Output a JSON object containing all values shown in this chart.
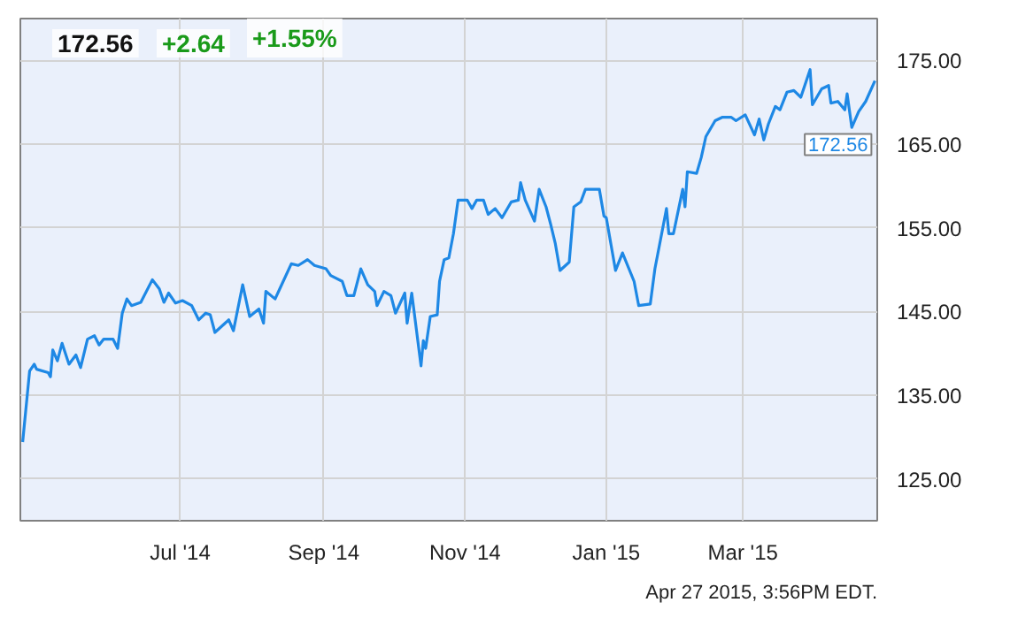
{
  "chart_data": {
    "type": "line",
    "x": [
      "2014-04-24",
      "2014-04-27",
      "2014-04-29",
      "2014-04-30",
      "2014-05-05",
      "2014-05-06",
      "2014-05-07",
      "2014-05-09",
      "2014-05-11",
      "2014-05-14",
      "2014-05-17",
      "2014-05-19",
      "2014-05-22",
      "2014-05-25",
      "2014-05-27",
      "2014-05-29",
      "2014-06-02",
      "2014-06-04",
      "2014-06-06",
      "2014-06-08",
      "2014-06-10",
      "2014-06-14",
      "2014-06-19",
      "2014-06-22",
      "2014-06-24",
      "2014-06-26",
      "2014-06-29",
      "2014-07-02",
      "2014-07-06",
      "2014-07-09",
      "2014-07-12",
      "2014-07-14",
      "2014-07-16",
      "2014-07-22",
      "2014-07-24",
      "2014-07-28",
      "2014-07-31",
      "2014-08-04",
      "2014-08-06",
      "2014-08-07",
      "2014-08-11",
      "2014-08-13",
      "2014-08-18",
      "2014-08-21",
      "2014-08-25",
      "2014-08-28",
      "2014-09-02",
      "2014-09-04",
      "2014-09-09",
      "2014-09-11",
      "2014-09-14",
      "2014-09-17",
      "2014-09-20",
      "2014-09-23",
      "2014-09-24",
      "2014-09-27",
      "2014-09-30",
      "2014-10-02",
      "2014-10-06",
      "2014-10-07",
      "2014-10-09",
      "2014-10-13",
      "2014-10-14",
      "2014-10-15",
      "2014-10-17",
      "2014-10-20",
      "2014-10-21",
      "2014-10-23",
      "2014-10-25",
      "2014-10-27",
      "2014-10-29",
      "2014-11-02",
      "2014-11-04",
      "2014-11-06",
      "2014-11-09",
      "2014-11-11",
      "2014-11-14",
      "2014-11-17",
      "2014-11-21",
      "2014-11-24",
      "2014-11-25",
      "2014-11-27",
      "2014-12-01",
      "2014-12-03",
      "2014-12-06",
      "2014-12-08",
      "2014-12-10",
      "2014-12-12",
      "2014-12-16",
      "2014-12-18",
      "2014-12-21",
      "2014-12-23",
      "2014-12-29",
      "2014-12-31",
      "2015-01-01",
      "2015-01-05",
      "2015-01-08",
      "2015-01-13",
      "2015-01-15",
      "2015-01-20",
      "2015-01-22",
      "2015-01-27",
      "2015-01-28",
      "2015-01-30",
      "2015-02-03",
      "2015-02-04",
      "2015-02-05",
      "2015-02-09",
      "2015-02-11",
      "2015-02-13",
      "2015-02-17",
      "2015-02-20",
      "2015-02-24",
      "2015-02-26",
      "2015-03-02",
      "2015-03-06",
      "2015-03-08",
      "2015-03-10",
      "2015-03-12",
      "2015-03-15",
      "2015-03-17",
      "2015-03-20",
      "2015-03-23",
      "2015-03-26",
      "2015-03-30",
      "2015-03-31",
      "2015-04-04",
      "2015-04-07",
      "2015-04-08",
      "2015-04-11",
      "2015-04-14",
      "2015-04-15",
      "2015-04-17",
      "2015-04-20",
      "2015-04-23",
      "2015-04-27"
    ],
    "series": [
      {
        "color": "#1e88e5",
        "values": [
          129.4,
          137.9,
          138.7,
          138.1,
          137.7,
          137.2,
          140.4,
          139.1,
          141.2,
          138.7,
          139.8,
          138.3,
          141.7,
          142.1,
          141.0,
          141.7,
          141.7,
          140.6,
          144.8,
          146.5,
          145.7,
          146.1,
          148.8,
          147.7,
          146.1,
          147.2,
          146.0,
          146.3,
          145.7,
          144.0,
          144.8,
          144.6,
          142.5,
          144.0,
          142.7,
          148.2,
          144.4,
          145.3,
          143.6,
          147.4,
          146.5,
          147.7,
          150.7,
          150.5,
          151.2,
          150.5,
          150.1,
          149.3,
          148.6,
          146.9,
          146.9,
          150.1,
          148.2,
          147.4,
          145.7,
          147.4,
          146.9,
          144.8,
          147.2,
          143.6,
          147.2,
          138.5,
          141.5,
          140.6,
          144.4,
          144.6,
          148.6,
          151.2,
          151.4,
          154.3,
          158.3,
          158.3,
          157.3,
          158.3,
          158.3,
          156.6,
          157.3,
          156.2,
          158.1,
          158.3,
          160.4,
          158.3,
          155.8,
          159.6,
          157.5,
          155.4,
          153.1,
          149.9,
          150.9,
          157.5,
          158.1,
          159.6,
          159.6,
          156.4,
          156.2,
          149.9,
          152.0,
          148.6,
          145.7,
          145.9,
          150.1,
          157.3,
          154.3,
          154.3,
          159.6,
          157.5,
          161.7,
          161.5,
          163.4,
          165.9,
          167.8,
          168.2,
          168.2,
          167.8,
          168.5,
          166.1,
          168.0,
          165.5,
          167.4,
          169.5,
          169.1,
          171.2,
          171.4,
          170.6,
          173.9,
          169.7,
          171.6,
          172.0,
          169.9,
          170.1,
          169.1,
          171.0,
          167.0,
          168.9,
          170.1,
          172.56
        ]
      }
    ],
    "xlim": [
      "2014-04-23",
      "2015-04-28"
    ],
    "xticks": [
      {
        "value": "2014-07-01",
        "label": "Jul '14"
      },
      {
        "value": "2014-09-01",
        "label": "Sep '14"
      },
      {
        "value": "2014-11-01",
        "label": "Nov '14"
      },
      {
        "value": "2015-01-01",
        "label": "Jan '15"
      },
      {
        "value": "2015-03-01",
        "label": "Mar '15"
      }
    ],
    "ylim": [
      120,
      180
    ],
    "yticks": [
      {
        "value": 125,
        "label": "125.00"
      },
      {
        "value": 135,
        "label": "135.00"
      },
      {
        "value": 145,
        "label": "145.00"
      },
      {
        "value": 155,
        "label": "155.00"
      },
      {
        "value": 165,
        "label": "165.00"
      },
      {
        "value": 175,
        "label": "175.00"
      }
    ],
    "grid": true,
    "annotations": [
      "172.56",
      "+2.64",
      "+1.55%",
      {
        "text": "172.56",
        "x": "2015-04-27",
        "y": 172.56
      },
      "Apr 27 2015, 3:56PM EDT."
    ]
  }
}
